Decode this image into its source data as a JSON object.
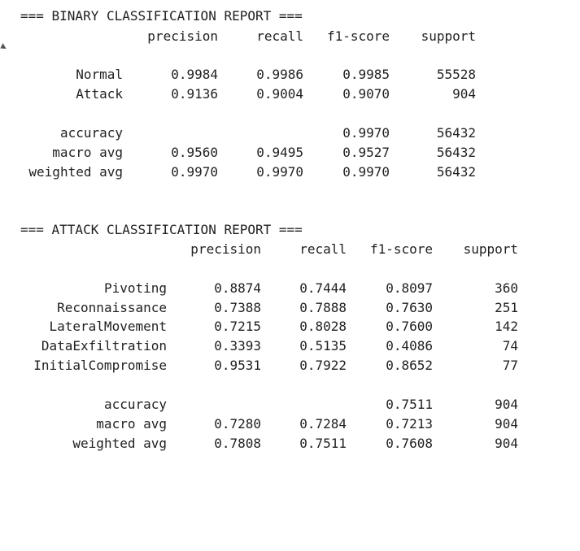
{
  "binary_report": {
    "title": "=== BINARY CLASSIFICATION REPORT ===",
    "headers": {
      "precision": "precision",
      "recall": "recall",
      "f1": "f1-score",
      "support": "support"
    },
    "rows": [
      {
        "label": "Normal",
        "precision": "0.9984",
        "recall": "0.9986",
        "f1": "0.9985",
        "support": "55528"
      },
      {
        "label": "Attack",
        "precision": "0.9136",
        "recall": "0.9004",
        "f1": "0.9070",
        "support": "904"
      }
    ],
    "summary": [
      {
        "label": "accuracy",
        "precision": "",
        "recall": "",
        "f1": "0.9970",
        "support": "56432"
      },
      {
        "label": "macro avg",
        "precision": "0.9560",
        "recall": "0.9495",
        "f1": "0.9527",
        "support": "56432"
      },
      {
        "label": "weighted avg",
        "precision": "0.9970",
        "recall": "0.9970",
        "f1": "0.9970",
        "support": "56432"
      }
    ]
  },
  "attack_report": {
    "title": "=== ATTACK CLASSIFICATION REPORT ===",
    "headers": {
      "precision": "precision",
      "recall": "recall",
      "f1": "f1-score",
      "support": "support"
    },
    "rows": [
      {
        "label": "Pivoting",
        "precision": "0.8874",
        "recall": "0.7444",
        "f1": "0.8097",
        "support": "360"
      },
      {
        "label": "Reconnaissance",
        "precision": "0.7388",
        "recall": "0.7888",
        "f1": "0.7630",
        "support": "251"
      },
      {
        "label": "LateralMovement",
        "precision": "0.7215",
        "recall": "0.8028",
        "f1": "0.7600",
        "support": "142"
      },
      {
        "label": "DataExfiltration",
        "precision": "0.3393",
        "recall": "0.5135",
        "f1": "0.4086",
        "support": "74"
      },
      {
        "label": "InitialCompromise",
        "precision": "0.9531",
        "recall": "0.7922",
        "f1": "0.8652",
        "support": "77"
      }
    ],
    "summary": [
      {
        "label": "accuracy",
        "precision": "",
        "recall": "",
        "f1": "0.7511",
        "support": "904"
      },
      {
        "label": "macro avg",
        "precision": "0.7280",
        "recall": "0.7284",
        "f1": "0.7213",
        "support": "904"
      },
      {
        "label": "weighted avg",
        "precision": "0.7808",
        "recall": "0.7511",
        "f1": "0.7608",
        "support": "904"
      }
    ]
  }
}
